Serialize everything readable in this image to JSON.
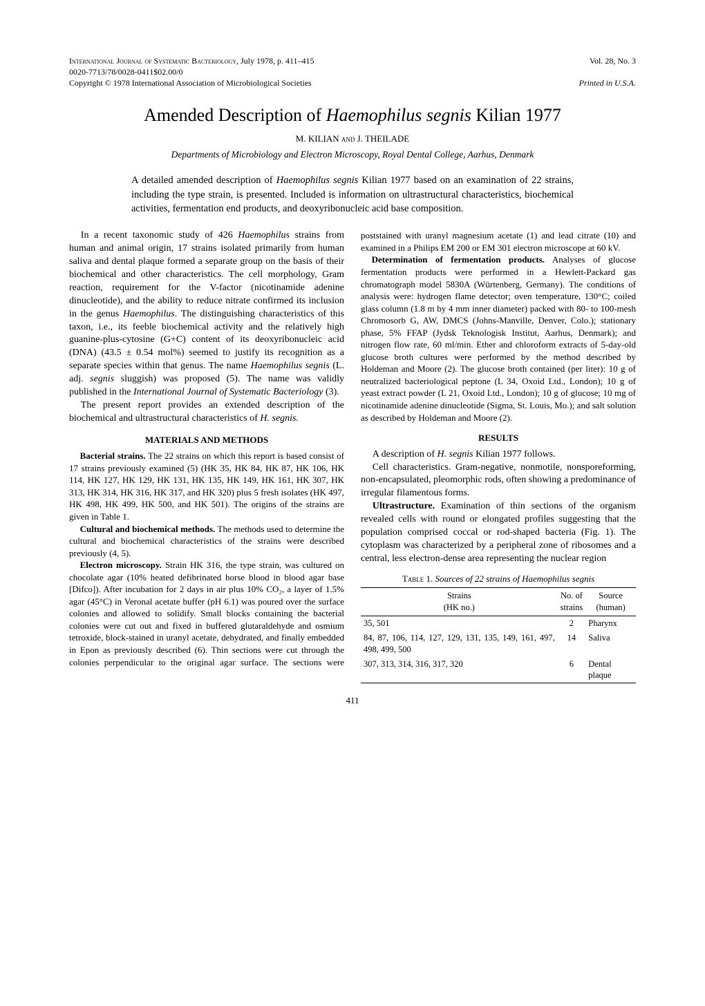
{
  "header": {
    "journal": "International Journal of Systematic Bacteriology",
    "date": "July 1978, p. 411–415",
    "issn": "0020-7713/78/0028-0411$02.00/0",
    "copyright": "Copyright © 1978   International Association of Microbiological Societies",
    "volume": "Vol. 28, No. 3",
    "printed": "Printed in U.S.A."
  },
  "title_pre": "Amended Description of ",
  "title_italic": "Haemophilus segnis",
  "title_post": " Kilian 1977",
  "authors": "M. KILIAN and J. THEILADE",
  "affiliation": "Departments of Microbiology and Electron Microscopy, Royal Dental College, Aarhus, Denmark",
  "abstract": "A detailed amended description of Haemophilus segnis Kilian 1977 based on an examination of 22 strains, including the type strain, is presented. Included is information on ultrastructural characteristics, biochemical activities, fermentation end products, and deoxyribonucleic acid base composition.",
  "intro_p1": "In a recent taxonomic study of 426 Haemophilus strains from human and animal origin, 17 strains isolated primarily from human saliva and dental plaque formed a separate group on the basis of their biochemical and other characteristics. The cell morphology, Gram reaction, requirement for the V-factor (nicotinamide adenine dinucleotide), and the ability to reduce nitrate confirmed its inclusion in the genus Haemophilus. The distinguishing characteristics of this taxon, i.e., its feeble biochemical activity and the relatively high guanine-plus-cytosine (G+C) content of its deoxyribonucleic acid (DNA) (43.5 ± 0.54 mol%) seemed to justify its recognition as a separate species within that genus. The name Haemophilus segnis (L. adj. segnis sluggish) was proposed (5). The name was validly published in the International Journal of Systematic Bacteriology (3).",
  "intro_p2": "The present report provides an extended description of the biochemical and ultrastructural characteristics of H. segnis.",
  "methods_heading": "MATERIALS AND METHODS",
  "methods_strains_label": "Bacterial strains.",
  "methods_strains": "The 22 strains on which this report is based consist of 17 strains previously examined (5) (HK 35, HK 84, HK 87, HK 106, HK 114, HK 127, HK 129, HK 131, HK 135, HK 149, HK 161, HK 307, HK 313, HK 314, HK 316, HK 317, and HK 320) plus 5 fresh isolates (HK 497, HK 498, HK 499, HK 500, and HK 501). The origins of the strains are given in Table 1.",
  "methods_cultural_label": "Cultural and biochemical methods.",
  "methods_cultural": "The methods used to determine the cultural and biochemical characteristics of the strains were described previously (4, 5).",
  "methods_em_label": "Electron microscopy.",
  "methods_em": "Strain HK 316, the type strain, was cultured on chocolate agar (10% heated defibrinated horse blood in blood agar base [Difco]). After incubation for 2 days in air plus 10% CO₂, a layer of 1.5% agar (45°C) in Veronal acetate buffer (pH 6.1) was poured over the surface colonies and allowed to solidify. Small blocks containing the bacterial colonies were cut out and fixed in buffered glutaraldehyde and osmium tetroxide, block-stained in uranyl acetate, dehydrated, and finally embedded in Epon as previously described (6). Thin sections were cut through the colonies perpendicular to the original agar surface. The sections were poststained with uranyl magnesium acetate (1) and lead citrate (10) and examined in a Philips EM 200 or EM 301 electron microscope at 60 kV.",
  "methods_ferm_label": "Determination of fermentation products.",
  "methods_ferm": "Analyses of glucose fermentation products were performed in a Hewlett-Packard gas chromatograph model 5830A (Würtenberg, Germany). The conditions of analysis were: hydrogen flame detector; oven temperature, 130°C; coiled glass column (1.8 m by 4 mm inner diameter) packed with 80- to 100-mesh Chromosorb G, AW, DMCS (Johns-Manville, Denver, Colo.); stationary phase, 5% FFAP (Jydsk Teknologisk Institut, Aarhus, Denmark); and nitrogen flow rate, 60 ml/min. Ether and chloroform extracts of 5-day-old glucose broth cultures were performed by the method described by Holdeman and Moore (2). The glucose broth contained (per liter): 10 g of neutralized bacteriological peptone (L 34, Oxoid Ltd., London); 10 g of yeast extract powder (L 21, Oxoid Ltd., London); 10 g of glucose; 10 mg of nicotinamide adenine dinucleotide (Sigma, St. Louis, Mo.); and salt solution as described by Holdeman and Moore (2).",
  "results_heading": "RESULTS",
  "results_intro": "A description of H. segnis Kilian 1977 follows.",
  "results_cell": "Cell characteristics. Gram-negative, nonmotile, nonsporeforming, non-encapsulated, pleomorphic rods, often showing a predominance of irregular filamentous forms.",
  "results_ultra_label": "Ultrastructure.",
  "results_ultra": "Examination of thin sections of the organism revealed cells with round or elongated profiles suggesting that the population comprised coccal or rod-shaped bacteria (Fig. 1). The cytoplasm was characterized by a peripheral zone of ribosomes and a central, less electron-dense area representing the nuclear region",
  "table1": {
    "caption_pre": "Table 1. ",
    "caption": "Sources of 22 strains of Haemophilus segnis",
    "col1": "Strains (HK no.)",
    "col2": "No. of strains",
    "col3": "Source (human)",
    "rows": [
      {
        "strains": "35, 501",
        "n": "2",
        "source": "Pharynx"
      },
      {
        "strains": "84, 87, 106, 114, 127, 129, 131, 135, 149, 161, 497, 498, 499, 500",
        "n": "14",
        "source": "Saliva"
      },
      {
        "strains": "307, 313, 314, 316, 317, 320",
        "n": "6",
        "source": "Dental plaque"
      }
    ]
  },
  "page_number": "411"
}
